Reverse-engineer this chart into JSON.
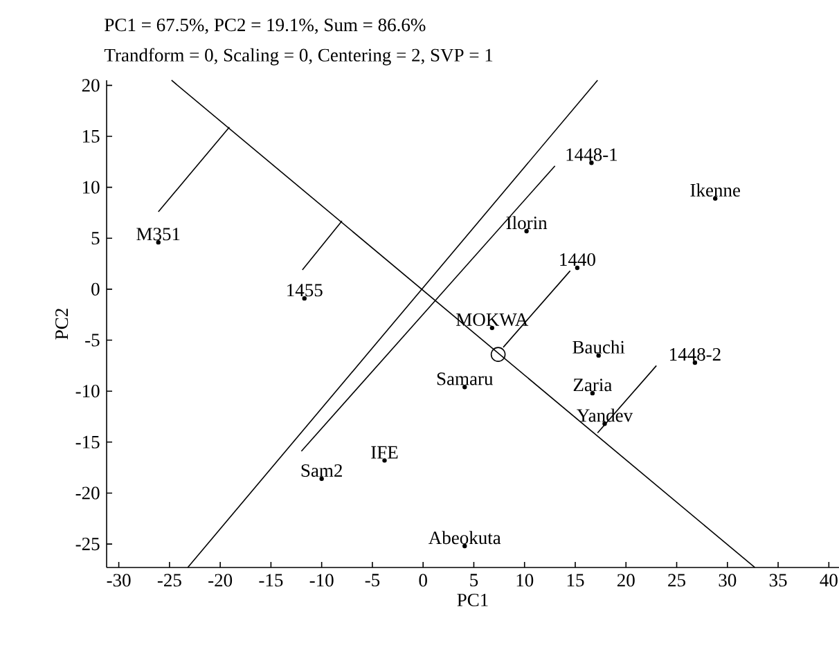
{
  "chart_data": {
    "type": "line",
    "title": "PC1 = 67.5%, PC2 = 19.1%, Sum = 86.6%",
    "subtitle": "Trandform = 0, Scaling  = 0, Centering = 2, SVP = 1",
    "xlabel": "PC1",
    "ylabel": "PC2",
    "xlim": [
      -31.2,
      41
    ],
    "ylim": [
      -27.3,
      20.5
    ],
    "xticks": [
      -30,
      -25,
      -20,
      -15,
      -10,
      -5,
      0,
      5,
      10,
      15,
      20,
      25,
      30,
      35,
      40
    ],
    "yticks": [
      -25,
      -20,
      -15,
      -10,
      -5,
      0,
      5,
      10,
      15,
      20
    ],
    "grid": false,
    "legend": false,
    "marker": "none",
    "line_style": "solid",
    "series": [
      {
        "color": "#000000",
        "x": [
          -24.8,
          32.7
        ],
        "values": [
          20.5,
          -27.3
        ]
      },
      {
        "color": "#000000",
        "x": [
          -23.2,
          17.2
        ],
        "values": [
          -27.3,
          20.5
        ]
      },
      {
        "color": "#000000",
        "x": [
          -19.1,
          -26.1
        ],
        "values": [
          15.9,
          7.6
        ]
      },
      {
        "color": "#000000",
        "x": [
          -8.0,
          -11.9
        ],
        "values": [
          6.7,
          1.9
        ]
      },
      {
        "color": "#000000",
        "x": [
          13.0,
          -12.0
        ],
        "values": [
          12.1,
          -15.9
        ]
      },
      {
        "color": "#000000",
        "x": [
          14.5,
          7.9
        ],
        "values": [
          1.8,
          -5.7
        ]
      },
      {
        "color": "#000000",
        "x": [
          23.0,
          17.2
        ],
        "values": [
          -7.5,
          -14.1
        ]
      },
      {
        "type": "scatter",
        "marker": "circle",
        "color": "#000000",
        "x": [
          7.4
        ],
        "values": [
          -6.4
        ]
      },
      {
        "type": "scatter",
        "marker": "dot",
        "name": "M351",
        "color": "#000000",
        "x": [
          -26.1
        ],
        "values": [
          4.6
        ]
      },
      {
        "type": "scatter",
        "marker": "dot",
        "name": "1455",
        "color": "#000000",
        "x": [
          -11.7
        ],
        "values": [
          -0.9
        ]
      },
      {
        "type": "scatter",
        "marker": "dot",
        "name": "1448-1",
        "color": "#000000",
        "x": [
          16.6
        ],
        "values": [
          12.4
        ]
      },
      {
        "type": "scatter",
        "marker": "dot",
        "name": "Ikenne",
        "color": "#000000",
        "x": [
          28.8
        ],
        "values": [
          8.9
        ]
      },
      {
        "type": "scatter",
        "marker": "dot",
        "name": "Ilorin",
        "color": "#000000",
        "x": [
          10.2
        ],
        "values": [
          5.7
        ]
      },
      {
        "type": "scatter",
        "marker": "dot",
        "name": "1440",
        "color": "#000000",
        "x": [
          15.2
        ],
        "values": [
          2.1
        ]
      },
      {
        "type": "scatter",
        "marker": "dot",
        "name": "MOKWA",
        "color": "#000000",
        "x": [
          6.8
        ],
        "values": [
          -3.8
        ]
      },
      {
        "type": "scatter",
        "marker": "dot",
        "name": "Bauchi",
        "color": "#000000",
        "x": [
          17.3
        ],
        "values": [
          -6.5
        ]
      },
      {
        "type": "scatter",
        "marker": "dot",
        "name": "1448-2",
        "color": "#000000",
        "x": [
          26.8
        ],
        "values": [
          -7.2
        ]
      },
      {
        "type": "scatter",
        "marker": "dot",
        "name": "Samaru",
        "color": "#000000",
        "x": [
          4.1
        ],
        "values": [
          -9.6
        ]
      },
      {
        "type": "scatter",
        "marker": "dot",
        "name": "Zaria",
        "color": "#000000",
        "x": [
          16.7
        ],
        "values": [
          -10.2
        ]
      },
      {
        "type": "scatter",
        "marker": "dot",
        "name": "Yandev",
        "color": "#000000",
        "x": [
          17.9
        ],
        "values": [
          -13.2
        ]
      },
      {
        "type": "scatter",
        "marker": "dot",
        "name": "IFE",
        "color": "#000000",
        "x": [
          -3.8
        ],
        "values": [
          -16.8
        ]
      },
      {
        "type": "scatter",
        "marker": "dot",
        "name": "Sam2",
        "color": "#000000",
        "x": [
          -10.0
        ],
        "values": [
          -18.6
        ]
      },
      {
        "type": "scatter",
        "marker": "dot",
        "name": "Abeokuta",
        "color": "#000000",
        "x": [
          4.1
        ],
        "values": [
          -25.2
        ]
      }
    ]
  }
}
